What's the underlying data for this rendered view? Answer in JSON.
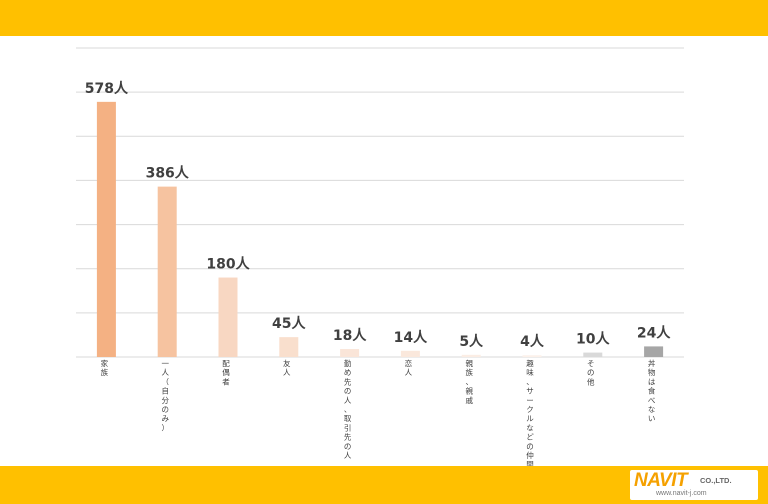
{
  "chart_data": {
    "type": "bar",
    "categories": [
      "家族",
      "一人（自分のみ）",
      "配偶者",
      "友人",
      "勤め先の人、取引先の人",
      "恋人",
      "親族、親戚",
      "趣味、サークルなどの仲間",
      "その他",
      "丼物は食べない"
    ],
    "values": [
      578,
      386,
      180,
      45,
      18,
      14,
      5,
      4,
      10,
      24
    ],
    "value_labels": [
      "578人",
      "386人",
      "180人",
      "45人",
      "18人",
      "14人",
      "5人",
      "4人",
      "10人",
      "24人"
    ],
    "bar_colors": [
      "#F4B183",
      "#F6C3A0",
      "#F8D7C2",
      "#F9DFCD",
      "#FAE5D8",
      "#FAE8DC",
      "#FBEDE4",
      "#FCF1EA",
      "#D9D9D9",
      "#A6A6A6"
    ],
    "ylim": [
      0,
      700
    ],
    "grid": true,
    "gridline_values": [
      0,
      100,
      200,
      300,
      400,
      500,
      600,
      700
    ],
    "title": "",
    "xlabel": "",
    "ylabel": ""
  },
  "logo": {
    "main": "NAVIT",
    "suffix": "CO.,LTD.",
    "url": "www.navit-j.com",
    "color": "#F5A100"
  },
  "colors": {
    "band": "#FFC000",
    "grid": "#D9D9D9",
    "label": "#404040"
  }
}
